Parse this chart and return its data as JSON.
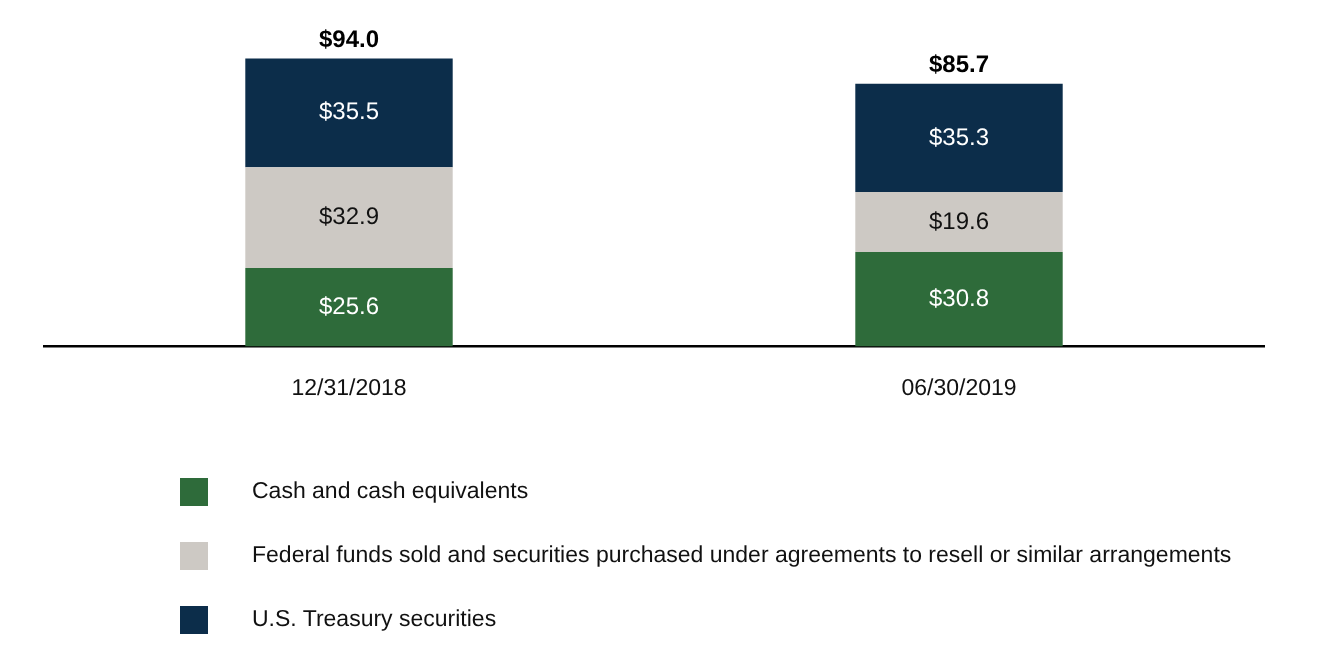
{
  "chart_data": {
    "type": "bar",
    "stacked": true,
    "categories": [
      "12/31/2018",
      "06/30/2019"
    ],
    "series": [
      {
        "name": "Cash and cash equivalents",
        "color": "#2e6b3a",
        "values": [
          25.6,
          30.8
        ],
        "value_labels": [
          "$25.6",
          "$30.8"
        ]
      },
      {
        "name": "Federal funds sold and securities purchased under agreements to resell or similar arrangements",
        "color": "#cdc9c4",
        "values": [
          32.9,
          19.6
        ],
        "value_labels": [
          "$32.9",
          "$19.6"
        ]
      },
      {
        "name": "U.S. Treasury securities",
        "color": "#0c2d4a",
        "values": [
          35.5,
          35.3
        ],
        "value_labels": [
          "$35.5",
          "$35.3"
        ]
      }
    ],
    "totals": [
      "$94.0",
      "$85.7"
    ],
    "legend": "bottom",
    "grid": false
  }
}
